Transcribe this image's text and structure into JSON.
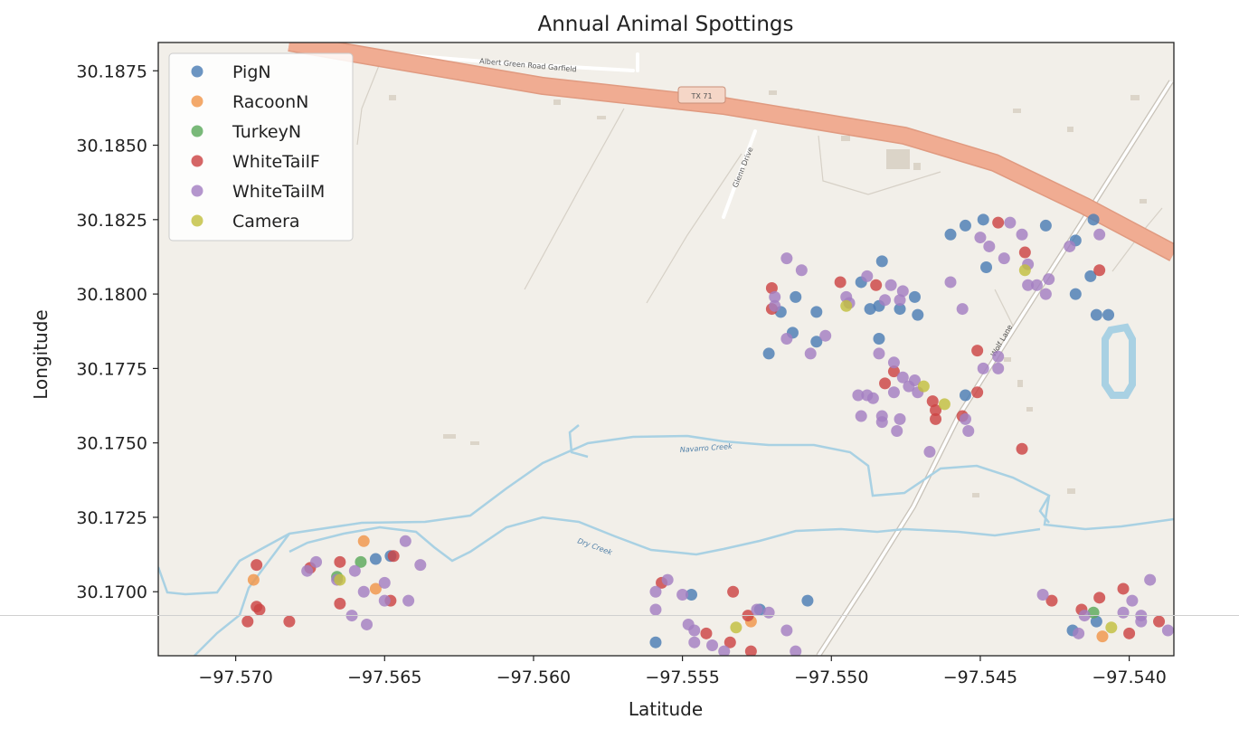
{
  "chart_data": {
    "type": "scatter",
    "title": "Annual Animal Spottings",
    "xlabel": "Latitude",
    "ylabel": "Longitude",
    "xlim": [
      -97.5726,
      -97.5385
    ],
    "ylim": [
      30.16785,
      30.18845
    ],
    "x_ticks": [
      -97.57,
      -97.565,
      -97.56,
      -97.555,
      -97.55,
      -97.545,
      -97.54
    ],
    "x_tick_labels": [
      "−97.570",
      "−97.565",
      "−97.560",
      "−97.555",
      "−97.550",
      "−97.545",
      "−97.540"
    ],
    "y_ticks": [
      30.17,
      30.1725,
      30.175,
      30.1775,
      30.18,
      30.1825,
      30.185,
      30.1875
    ],
    "y_tick_labels": [
      "30.1700",
      "30.1725",
      "30.1750",
      "30.1775",
      "30.1800",
      "30.1825",
      "30.1850",
      "30.1875"
    ],
    "grid": false,
    "legend_position": "top-left",
    "background": "street-map",
    "map_labels": {
      "highway_shield": "TX 71",
      "road_top": "Albert Green Road Garfield",
      "creek_1": "Navarro Creek",
      "creek_2": "Dry Creek",
      "road_diag": "Wolf Lane",
      "road_small": "Glenn Drive"
    },
    "series": [
      {
        "name": "PigN",
        "color": "#4c7eb5",
        "points": [
          [
            -97.5512,
            30.1799
          ],
          [
            -97.5517,
            30.1794
          ],
          [
            -97.5505,
            30.1794
          ],
          [
            -97.5513,
            30.1787
          ],
          [
            -97.5521,
            30.178
          ],
          [
            -97.5505,
            30.1784
          ],
          [
            -97.549,
            30.1804
          ],
          [
            -97.5483,
            30.1811
          ],
          [
            -97.5484,
            30.1796
          ],
          [
            -97.5487,
            30.1795
          ],
          [
            -97.5477,
            30.1795
          ],
          [
            -97.5484,
            30.1785
          ],
          [
            -97.5472,
            30.1799
          ],
          [
            -97.5471,
            30.1793
          ],
          [
            -97.546,
            30.182
          ],
          [
            -97.5455,
            30.1823
          ],
          [
            -97.5449,
            30.1825
          ],
          [
            -97.5448,
            30.1809
          ],
          [
            -97.5428,
            30.1823
          ],
          [
            -97.5418,
            30.1818
          ],
          [
            -97.5412,
            30.1825
          ],
          [
            -97.5413,
            30.1806
          ],
          [
            -97.5418,
            30.18
          ],
          [
            -97.5411,
            30.1793
          ],
          [
            -97.5407,
            30.1793
          ],
          [
            -97.5455,
            30.1766
          ],
          [
            -97.5653,
            30.1711
          ],
          [
            -97.5648,
            30.1712
          ],
          [
            -97.5547,
            30.1699
          ],
          [
            -97.5524,
            30.1694
          ],
          [
            -97.5508,
            30.1697
          ],
          [
            -97.5559,
            30.1683
          ],
          [
            -97.5419,
            30.1687
          ],
          [
            -97.5411,
            30.169
          ]
        ]
      },
      {
        "name": "RacoonN",
        "color": "#f0964a",
        "points": [
          [
            -97.5694,
            30.1704
          ],
          [
            -97.5657,
            30.1717
          ],
          [
            -97.5653,
            30.1701
          ],
          [
            -97.5527,
            30.169
          ],
          [
            -97.5409,
            30.1685
          ]
        ]
      },
      {
        "name": "TurkeyN",
        "color": "#5ca95c",
        "points": [
          [
            -97.5658,
            30.171
          ],
          [
            -97.5666,
            30.1705
          ],
          [
            -97.5412,
            30.1693
          ]
        ]
      },
      {
        "name": "WhiteTailF",
        "color": "#cc4444",
        "points": [
          [
            -97.5693,
            30.1709
          ],
          [
            -97.5693,
            30.1695
          ],
          [
            -97.5692,
            30.1694
          ],
          [
            -97.5696,
            30.169
          ],
          [
            -97.5682,
            30.169
          ],
          [
            -97.5675,
            30.1708
          ],
          [
            -97.5665,
            30.171
          ],
          [
            -97.5647,
            30.1712
          ],
          [
            -97.5665,
            30.1696
          ],
          [
            -97.5648,
            30.1697
          ],
          [
            -97.5557,
            30.1703
          ],
          [
            -97.5533,
            30.17
          ],
          [
            -97.5528,
            30.1692
          ],
          [
            -97.5542,
            30.1686
          ],
          [
            -97.5534,
            30.1683
          ],
          [
            -97.5527,
            30.168
          ],
          [
            -97.552,
            30.1802
          ],
          [
            -97.552,
            30.1795
          ],
          [
            -97.5497,
            30.1804
          ],
          [
            -97.5485,
            30.1803
          ],
          [
            -97.5479,
            30.1774
          ],
          [
            -97.5482,
            30.177
          ],
          [
            -97.5466,
            30.1764
          ],
          [
            -97.5465,
            30.1761
          ],
          [
            -97.5465,
            30.1758
          ],
          [
            -97.5456,
            30.1759
          ],
          [
            -97.5451,
            30.1767
          ],
          [
            -97.5451,
            30.1781
          ],
          [
            -97.5444,
            30.1824
          ],
          [
            -97.5435,
            30.1814
          ],
          [
            -97.541,
            30.1808
          ],
          [
            -97.5436,
            30.1748
          ],
          [
            -97.5426,
            30.1697
          ],
          [
            -97.5416,
            30.1694
          ],
          [
            -97.541,
            30.1698
          ],
          [
            -97.5402,
            30.1701
          ],
          [
            -97.54,
            30.1686
          ],
          [
            -97.539,
            30.169
          ]
        ]
      },
      {
        "name": "WhiteTailM",
        "color": "#a37fc2",
        "points": [
          [
            -97.5676,
            30.1707
          ],
          [
            -97.5673,
            30.171
          ],
          [
            -97.5666,
            30.1704
          ],
          [
            -97.566,
            30.1707
          ],
          [
            -97.565,
            30.1703
          ],
          [
            -97.5657,
            30.17
          ],
          [
            -97.5643,
            30.1717
          ],
          [
            -97.5638,
            30.1709
          ],
          [
            -97.5642,
            30.1697
          ],
          [
            -97.5661,
            30.1692
          ],
          [
            -97.565,
            30.1697
          ],
          [
            -97.5656,
            30.1689
          ],
          [
            -97.5559,
            30.17
          ],
          [
            -97.5559,
            30.1694
          ],
          [
            -97.5555,
            30.1704
          ],
          [
            -97.555,
            30.1699
          ],
          [
            -97.5548,
            30.1689
          ],
          [
            -97.5546,
            30.1687
          ],
          [
            -97.554,
            30.1682
          ],
          [
            -97.5546,
            30.1683
          ],
          [
            -97.5536,
            30.168
          ],
          [
            -97.5525,
            30.1694
          ],
          [
            -97.5521,
            30.1693
          ],
          [
            -97.5515,
            30.1687
          ],
          [
            -97.5512,
            30.168
          ],
          [
            -97.5515,
            30.1812
          ],
          [
            -97.551,
            30.1808
          ],
          [
            -97.5519,
            30.1799
          ],
          [
            -97.5519,
            30.1796
          ],
          [
            -97.5515,
            30.1785
          ],
          [
            -97.5502,
            30.1786
          ],
          [
            -97.5507,
            30.178
          ],
          [
            -97.5488,
            30.1806
          ],
          [
            -97.5495,
            30.1799
          ],
          [
            -97.5494,
            30.1797
          ],
          [
            -97.5482,
            30.1798
          ],
          [
            -97.548,
            30.1803
          ],
          [
            -97.5476,
            30.1801
          ],
          [
            -97.5477,
            30.1798
          ],
          [
            -97.5484,
            30.178
          ],
          [
            -97.5479,
            30.1777
          ],
          [
            -97.5476,
            30.1772
          ],
          [
            -97.5474,
            30.1769
          ],
          [
            -97.5479,
            30.1767
          ],
          [
            -97.5491,
            30.1766
          ],
          [
            -97.5488,
            30.1766
          ],
          [
            -97.5486,
            30.1765
          ],
          [
            -97.549,
            30.1759
          ],
          [
            -97.5483,
            30.1759
          ],
          [
            -97.5483,
            30.1757
          ],
          [
            -97.5478,
            30.1754
          ],
          [
            -97.5477,
            30.1758
          ],
          [
            -97.5472,
            30.1771
          ],
          [
            -97.5471,
            30.1767
          ],
          [
            -97.546,
            30.1804
          ],
          [
            -97.5456,
            30.1795
          ],
          [
            -97.5447,
            30.1816
          ],
          [
            -97.545,
            30.1819
          ],
          [
            -97.544,
            30.1824
          ],
          [
            -97.5436,
            30.182
          ],
          [
            -97.5442,
            30.1812
          ],
          [
            -97.5434,
            30.181
          ],
          [
            -97.5434,
            30.1803
          ],
          [
            -97.5431,
            30.1803
          ],
          [
            -97.542,
            30.1816
          ],
          [
            -97.541,
            30.182
          ],
          [
            -97.5427,
            30.1805
          ],
          [
            -97.5428,
            30.18
          ],
          [
            -97.5444,
            30.1779
          ],
          [
            -97.5444,
            30.1775
          ],
          [
            -97.5449,
            30.1775
          ],
          [
            -97.5455,
            30.1758
          ],
          [
            -97.5454,
            30.1754
          ],
          [
            -97.5467,
            30.1747
          ],
          [
            -97.5429,
            30.1699
          ],
          [
            -97.5417,
            30.1686
          ],
          [
            -97.5415,
            30.1692
          ],
          [
            -97.5402,
            30.1693
          ],
          [
            -97.5399,
            30.1697
          ],
          [
            -97.5396,
            30.1692
          ],
          [
            -97.5393,
            30.1704
          ],
          [
            -97.5396,
            30.169
          ],
          [
            -97.5387,
            30.1687
          ]
        ]
      },
      {
        "name": "Camera",
        "color": "#c2c040",
        "points": [
          [
            -97.5665,
            30.1704
          ],
          [
            -97.5532,
            30.1688
          ],
          [
            -97.5495,
            30.1796
          ],
          [
            -97.5469,
            30.1769
          ],
          [
            -97.5462,
            30.1763
          ],
          [
            -97.5435,
            30.1808
          ],
          [
            -97.5406,
            30.1688
          ]
        ]
      }
    ]
  }
}
